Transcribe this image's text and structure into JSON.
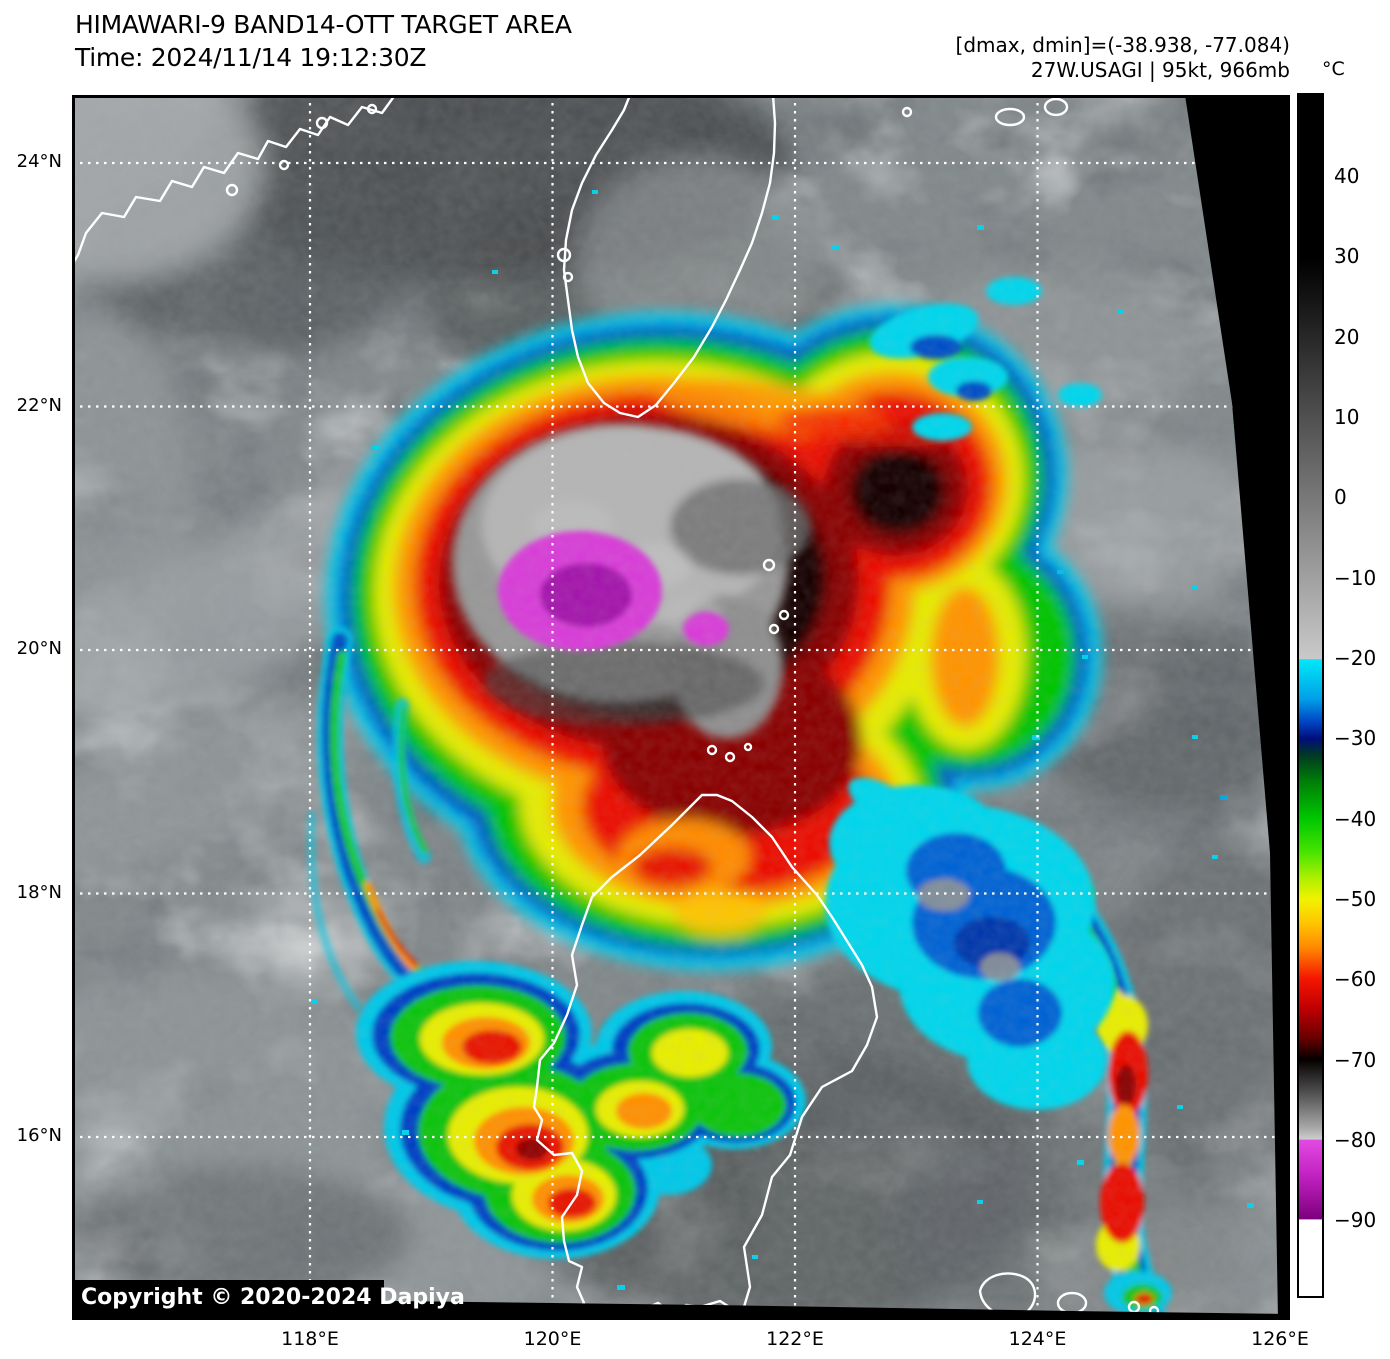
{
  "header": {
    "title": "HIMAWARI-9 BAND14-OTT TARGET AREA",
    "time": "Time: 2024/11/14 19:12:30Z",
    "dminmax": "[dmax, dmin]=(-38.938, -77.084)",
    "storm": "27W.USAGI | 95kt, 966mb"
  },
  "colorbar": {
    "unit": "°C",
    "ticks": [
      "40",
      "30",
      "20",
      "10",
      "0",
      "−10",
      "−20",
      "−30",
      "−40",
      "−50",
      "−60",
      "−70",
      "−80",
      "−90"
    ],
    "gradient_stops": [
      [
        0.0,
        "#000000"
      ],
      [
        0.136,
        "#000000"
      ],
      [
        0.4695,
        "#c9c9c9"
      ],
      [
        0.47,
        "#00e8f8"
      ],
      [
        0.503,
        "#00a0e8"
      ],
      [
        0.523,
        "#0040c0"
      ],
      [
        0.536,
        "#000e7a"
      ],
      [
        0.55,
        "#003a22"
      ],
      [
        0.57,
        "#007a08"
      ],
      [
        0.603,
        "#00c800"
      ],
      [
        0.63,
        "#46e400"
      ],
      [
        0.653,
        "#b2f000"
      ],
      [
        0.67,
        "#f2f200"
      ],
      [
        0.69,
        "#ffc400"
      ],
      [
        0.71,
        "#ff8800"
      ],
      [
        0.736,
        "#f51500"
      ],
      [
        0.76,
        "#c00000"
      ],
      [
        0.785,
        "#6a0000"
      ],
      [
        0.803,
        "#050000"
      ],
      [
        0.83,
        "#4e4e4e"
      ],
      [
        0.86,
        "#a8a8a8"
      ],
      [
        0.8695,
        "#cdcdcd"
      ],
      [
        0.87,
        "#e24ae2"
      ],
      [
        0.9,
        "#c121c1"
      ],
      [
        0.936,
        "#7d007d"
      ],
      [
        0.9365,
        "#ffffff"
      ],
      [
        1.0,
        "#ffffff"
      ]
    ]
  },
  "axes": {
    "lat": [
      "24°N",
      "22°N",
      "20°N",
      "18°N",
      "16°N"
    ],
    "lon": [
      "118°E",
      "120°E",
      "122°E",
      "124°E",
      "126°E"
    ]
  },
  "map": {
    "copyright": "Copyright © 2020-2024 Dapiya"
  },
  "colors": {
    "coastline": "#ffffff",
    "grid": "#ffffff",
    "coldest_overshoot": "#d83ed8",
    "deep_convection_red": "#ec1000",
    "anvil_green": "#00c400",
    "cirrus_cyan": "#00d0ee",
    "scan_edge": "#000000"
  }
}
